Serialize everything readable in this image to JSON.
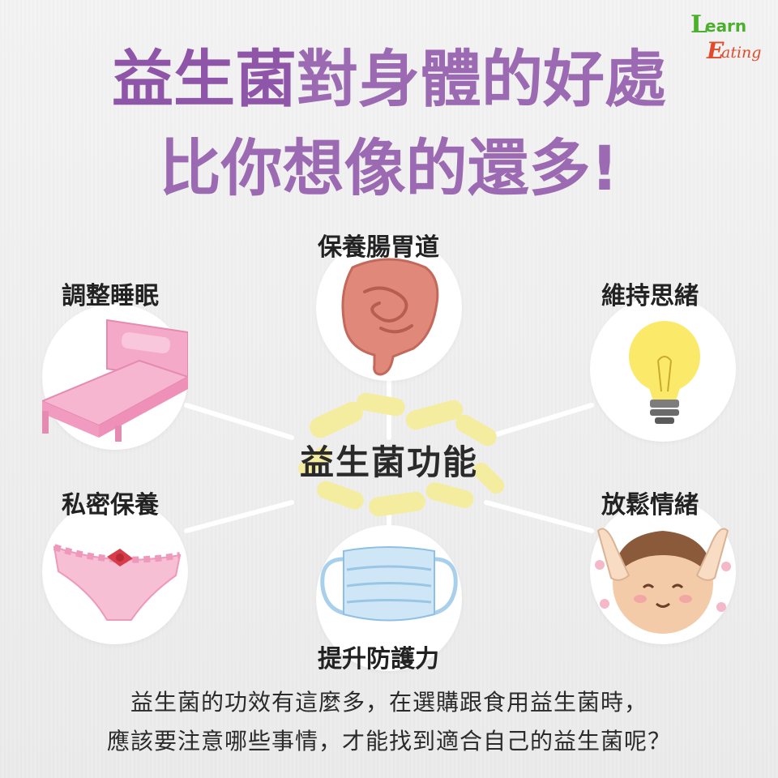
{
  "logo": {
    "l": "L",
    "earn": "earn",
    "e": "E",
    "ating": "ating"
  },
  "title": {
    "line1_highlight": "益生菌",
    "line1_rest": "對身體的好處",
    "line2_start": "比你想像的還",
    "line2_highlight": "多",
    "line2_end": "!"
  },
  "center_label": "益生菌功能",
  "benefits": [
    {
      "label": "保養腸胃道",
      "icon": "intestine-icon"
    },
    {
      "label": "調整睡眠",
      "icon": "bed-icon"
    },
    {
      "label": "維持思緒",
      "icon": "lightbulb-icon"
    },
    {
      "label": "私密保養",
      "icon": "underwear-icon"
    },
    {
      "label": "放鬆情緒",
      "icon": "relaxed-face-icon"
    },
    {
      "label": "提升防護力",
      "icon": "face-mask-icon"
    }
  ],
  "footer": {
    "line1": "益生菌的功效有這麼多，在選購跟食用益生菌時，",
    "line2": "應該要注意哪些事情，才能找到適合自己的益生菌呢？"
  },
  "colors": {
    "title": "#9c6ab2",
    "highlight": "#f7f29a",
    "logo_green": "#4caf2e",
    "logo_red": "#e24a2b"
  }
}
